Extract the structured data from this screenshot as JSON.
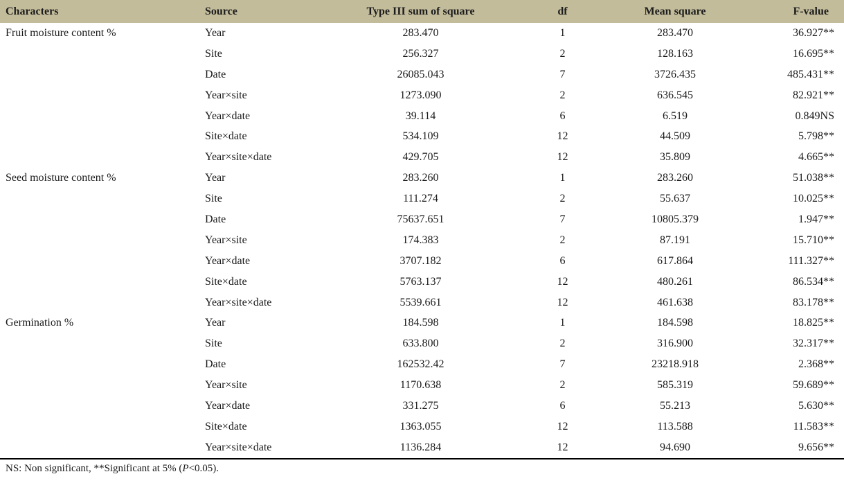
{
  "colors": {
    "header_bg": "#c2bc9b",
    "header_text": "#1c1c1c",
    "body_text": "#1a1a1a",
    "bottom_rule": "#000000"
  },
  "chart_data": {
    "type": "table",
    "title": "",
    "columns": [
      "Characters",
      "Source",
      "Type III sum of square",
      "df",
      "Mean square",
      "F-value"
    ]
  },
  "table": {
    "columns": [
      "Characters",
      "Source",
      "Type III sum of square",
      "df",
      "Mean square",
      "F-value"
    ],
    "groups": [
      {
        "character": "Fruit moisture content %",
        "rows": [
          {
            "source": "Year",
            "ss": "283.470",
            "df": "1",
            "ms": "283.470",
            "f": "36.927**"
          },
          {
            "source": "Site",
            "ss": "256.327",
            "df": "2",
            "ms": "128.163",
            "f": "16.695**"
          },
          {
            "source": "Date",
            "ss": "26085.043",
            "df": "7",
            "ms": "3726.435",
            "f": "485.431**"
          },
          {
            "source": "Year×site",
            "ss": "1273.090",
            "df": "2",
            "ms": "636.545",
            "f": "82.921**"
          },
          {
            "source": "Year×date",
            "ss": "39.114",
            "df": "6",
            "ms": "6.519",
            "f": "0.849NS"
          },
          {
            "source": "Site×date",
            "ss": "534.109",
            "df": "12",
            "ms": "44.509",
            "f": "5.798**"
          },
          {
            "source": "Year×site×date",
            "ss": "429.705",
            "df": "12",
            "ms": "35.809",
            "f": "4.665**"
          }
        ]
      },
      {
        "character": "Seed moisture content %",
        "rows": [
          {
            "source": "Year",
            "ss": "283.260",
            "df": "1",
            "ms": "283.260",
            "f": "51.038**"
          },
          {
            "source": "Site",
            "ss": "111.274",
            "df": "2",
            "ms": "55.637",
            "f": "10.025**"
          },
          {
            "source": "Date",
            "ss": "75637.651",
            "df": "7",
            "ms": "10805.379",
            "f": "1.947**"
          },
          {
            "source": "Year×site",
            "ss": "174.383",
            "df": "2",
            "ms": "87.191",
            "f": "15.710**"
          },
          {
            "source": "Year×date",
            "ss": "3707.182",
            "df": "6",
            "ms": "617.864",
            "f": "111.327**"
          },
          {
            "source": "Site×date",
            "ss": "5763.137",
            "df": "12",
            "ms": "480.261",
            "f": "86.534**"
          },
          {
            "source": "Year×site×date",
            "ss": "5539.661",
            "df": "12",
            "ms": "461.638",
            "f": "83.178**"
          }
        ]
      },
      {
        "character": "Germination %",
        "rows": [
          {
            "source": "Year",
            "ss": "184.598",
            "df": "1",
            "ms": "184.598",
            "f": "18.825**"
          },
          {
            "source": "Site",
            "ss": "633.800",
            "df": "2",
            "ms": "316.900",
            "f": "32.317**"
          },
          {
            "source": "Date",
            "ss": "162532.42",
            "df": "7",
            "ms": "23218.918",
            "f": "2.368**"
          },
          {
            "source": "Year×site",
            "ss": "1170.638",
            "df": "2",
            "ms": "585.319",
            "f": "59.689**"
          },
          {
            "source": "Year×date",
            "ss": "331.275",
            "df": "6",
            "ms": "55.213",
            "f": "5.630**"
          },
          {
            "source": "Site×date",
            "ss": "1363.055",
            "df": "12",
            "ms": "113.588",
            "f": "11.583**"
          },
          {
            "source": "Year×site×date",
            "ss": "1136.284",
            "df": "12",
            "ms": "94.690",
            "f": "9.656**"
          }
        ]
      }
    ],
    "footnote": {
      "prefix": "NS: Non significant, **Significant at 5% (",
      "italic": "P",
      "suffix": "<0.05)."
    }
  }
}
